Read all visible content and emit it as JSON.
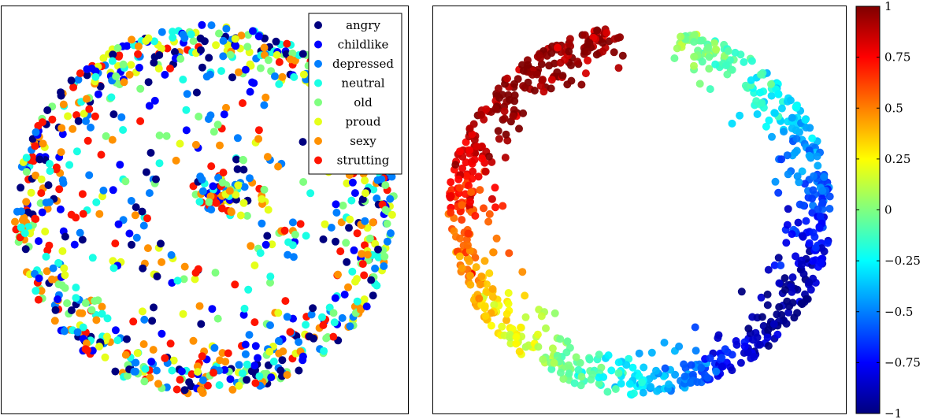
{
  "chart_data": [
    {
      "type": "scatter",
      "title": "",
      "xlabel": "",
      "ylabel": "",
      "grid": false,
      "legend_placement": "top-right",
      "xlim": [
        -1.1,
        1.1
      ],
      "ylim": [
        -1.1,
        1.1
      ],
      "axis_ticks_visible": false,
      "structure": "points scattered around a ring of radius about 1, plus a dense cluster near (0.1, 0.1)",
      "series": [
        {
          "name": "angry",
          "color": "#00007f"
        },
        {
          "name": "childlike",
          "color": "#0000ff"
        },
        {
          "name": "depressed",
          "color": "#007fff"
        },
        {
          "name": "neutral",
          "color": "#19ffe5"
        },
        {
          "name": "old",
          "color": "#7fff7f"
        },
        {
          "name": "proud",
          "color": "#e5ff19"
        },
        {
          "name": "sexy",
          "color": "#ff9100"
        },
        {
          "name": "strutting",
          "color": "#ff1400"
        }
      ]
    },
    {
      "type": "scatter",
      "title": "",
      "xlabel": "",
      "ylabel": "",
      "grid": false,
      "xlim": [
        -1.1,
        1.1
      ],
      "ylim": [
        -1.1,
        1.1
      ],
      "axis_ticks_visible": false,
      "structure": "points on a ring, color varies with angle: red at upper-left, yellow at lower-left, cyan at bottom, blue at lower-right, cyan/green at upper-right, gap at top",
      "colormap": "jet",
      "colorbar": {
        "range": [
          -1,
          1
        ],
        "ticks": [
          1,
          0.75,
          0.5,
          0.25,
          0,
          -0.25,
          -0.5,
          -0.75,
          -1
        ],
        "tick_labels": [
          "1",
          "0.75",
          "0.5",
          "0.25",
          "0",
          "−0.25",
          "−0.5",
          "−0.75",
          "−1"
        ]
      }
    }
  ]
}
